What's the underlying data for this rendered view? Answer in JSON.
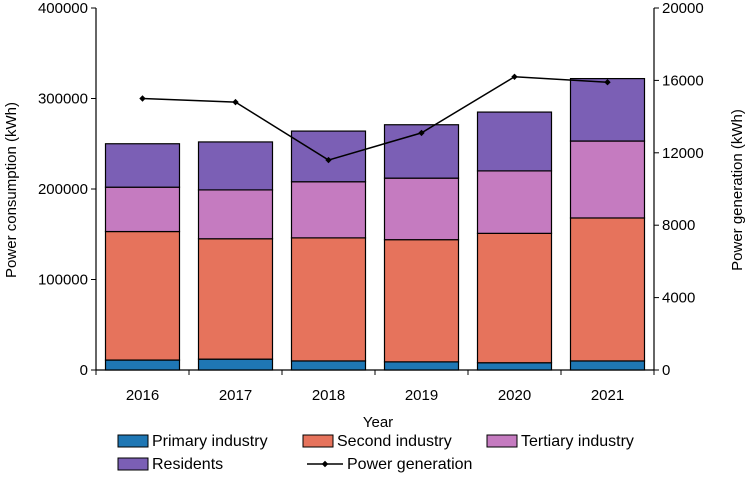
{
  "chart_data": {
    "type": "bar",
    "stacked": true,
    "title": "",
    "xlabel": "Year",
    "ylabel": "Power consumption (kWh)",
    "y2label": "Power generation (kWh)",
    "ylim": [
      0,
      400000
    ],
    "y2lim": [
      0,
      20000
    ],
    "yticks": [
      "0",
      "100000",
      "200000",
      "300000",
      "400000"
    ],
    "y2ticks": [
      "0",
      "4000",
      "8000",
      "12000",
      "16000",
      "20000"
    ],
    "categories": [
      "2016",
      "2017",
      "2018",
      "2019",
      "2020",
      "2021"
    ],
    "series": [
      {
        "name": "Primary industry",
        "color": "#1F77B4",
        "values": [
          11000,
          12000,
          10000,
          9000,
          8000,
          10000
        ]
      },
      {
        "name": "Second industry",
        "color": "#E6735C",
        "values": [
          142000,
          133000,
          136000,
          135000,
          143000,
          158000
        ]
      },
      {
        "name": "Tertiary industry",
        "color": "#C57BC0",
        "values": [
          49000,
          54000,
          62000,
          68000,
          69000,
          85000
        ]
      },
      {
        "name": "Residents",
        "color": "#7B5FB5",
        "values": [
          48000,
          53000,
          56000,
          59000,
          65000,
          69000
        ]
      }
    ],
    "line_series": {
      "name": "Power generation",
      "axis": "right",
      "color": "#000000",
      "values": [
        15000,
        14800,
        11600,
        13100,
        16200,
        15900
      ]
    },
    "legend": "bottom"
  }
}
